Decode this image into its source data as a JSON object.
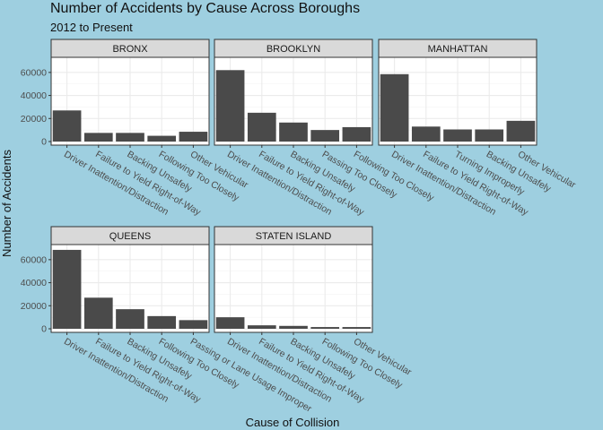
{
  "title": "Number of Accidents by Cause Across Boroughs",
  "subtitle": "2012 to Present",
  "colors": {
    "background": "#9ecfe0",
    "panel": "#ffffff",
    "bar": "#4a4a4a",
    "strip": "#d9d9d9",
    "grid": "#ebebeb",
    "panel_border": "#333333"
  },
  "chart_data": {
    "type": "bar",
    "facet": "borough",
    "xlabel": "Cause of Collision",
    "ylabel": "Number of Accidents",
    "ylim": [
      0,
      70000
    ],
    "y_ticks": [
      0,
      20000,
      40000,
      60000
    ],
    "grid": true,
    "panels": [
      {
        "name": "BRONX",
        "categories": [
          "Driver Inattention/Distraction",
          "Failure to Yield Right-of-Way",
          "Backing Unsafely",
          "Following Too Closely",
          "Other Vehicular"
        ],
        "values": [
          27000,
          7500,
          7500,
          5000,
          8500
        ]
      },
      {
        "name": "BROOKLYN",
        "categories": [
          "Driver Inattention/Distraction",
          "Failure to Yield Right-of-Way",
          "Backing Unsafely",
          "Passing Too Closely",
          "Following Too Closely"
        ],
        "values": [
          62000,
          25000,
          16500,
          10000,
          12500
        ]
      },
      {
        "name": "MANHATTAN",
        "categories": [
          "Driver Inattention/Distraction",
          "Failure to Yield Right-of-Way",
          "Turning Improperly",
          "Backing Unsafely",
          "Other Vehicular"
        ],
        "values": [
          58500,
          13000,
          10500,
          10500,
          18000
        ]
      },
      {
        "name": "QUEENS",
        "categories": [
          "Driver Inattention/Distraction",
          "Failure to Yield Right-of-Way",
          "Backing Unsafely",
          "Following Too Closely",
          "Passing or Lane Usage Improper"
        ],
        "values": [
          68500,
          27000,
          17000,
          11000,
          7500
        ]
      },
      {
        "name": "STATEN ISLAND",
        "categories": [
          "Driver Inattention/Distraction",
          "Failure to Yield Right-of-Way",
          "Backing Unsafely",
          "Following Too Closely",
          "Other Vehicular"
        ],
        "values": [
          10000,
          3000,
          2500,
          1500,
          1500
        ]
      }
    ]
  }
}
